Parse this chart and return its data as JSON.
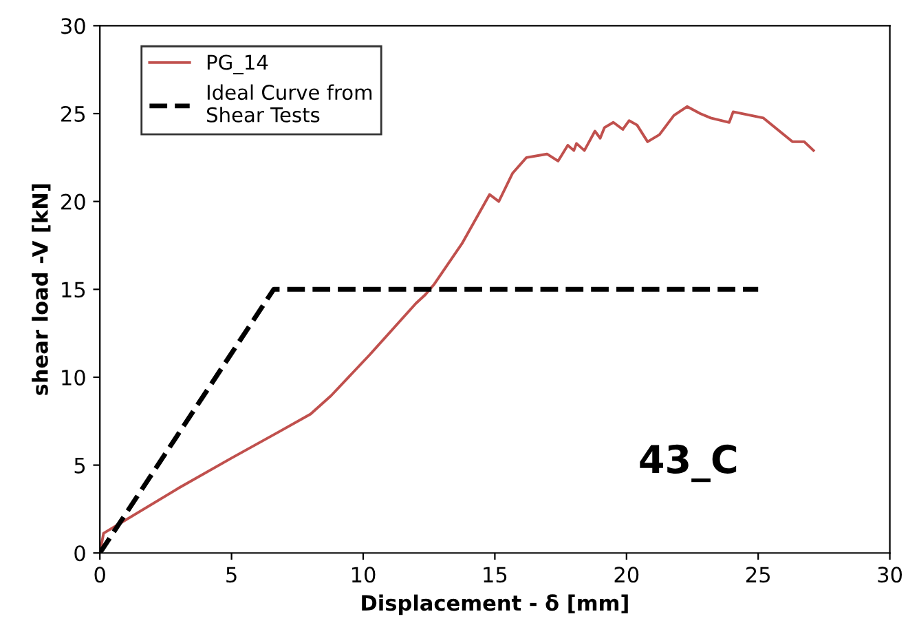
{
  "chart_data": {
    "type": "line",
    "xlabel": "Displacement - δ [mm]",
    "ylabel": "shear load -V [kN]",
    "xlim": [
      0,
      30
    ],
    "ylim": [
      0,
      30
    ],
    "xticks": [
      0,
      5,
      10,
      15,
      20,
      25,
      30
    ],
    "yticks": [
      0,
      5,
      10,
      15,
      20,
      25,
      30
    ],
    "grid": false,
    "legend": "top left",
    "annotations": [
      "43_C"
    ],
    "series": [
      {
        "name": "PG_14",
        "color": "#c0504d",
        "line_style": "solid",
        "x": [
          0,
          0.14,
          3,
          5,
          6.77,
          8.0,
          8.78,
          10.26,
          12.0,
          12.36,
          12.7,
          13.75,
          14.8,
          15.15,
          15.67,
          16.2,
          16.98,
          17.4,
          17.77,
          18.0,
          18.1,
          18.4,
          18.8,
          19.0,
          19.16,
          19.5,
          19.86,
          20.1,
          20.4,
          20.8,
          21.25,
          21.8,
          22.3,
          22.8,
          23.2,
          23.9,
          24.05,
          25.2,
          26.3,
          26.75,
          27.1
        ],
        "values": [
          0,
          1.12,
          3.7,
          5.4,
          6.87,
          7.9,
          8.95,
          11.3,
          14.2,
          14.7,
          15.3,
          17.6,
          20.4,
          20.0,
          21.6,
          22.5,
          22.7,
          22.3,
          23.2,
          22.9,
          23.3,
          22.9,
          24.0,
          23.6,
          24.2,
          24.5,
          24.1,
          24.6,
          24.35,
          23.4,
          23.8,
          24.9,
          25.4,
          25.0,
          24.75,
          24.5,
          25.1,
          24.75,
          23.4,
          23.4,
          22.9
        ]
      },
      {
        "name": "Ideal Curve from\nShear Tests",
        "color": "#000000",
        "line_style": "dashed",
        "x": [
          0,
          6.6,
          25
        ],
        "values": [
          0,
          15,
          15
        ]
      }
    ]
  }
}
